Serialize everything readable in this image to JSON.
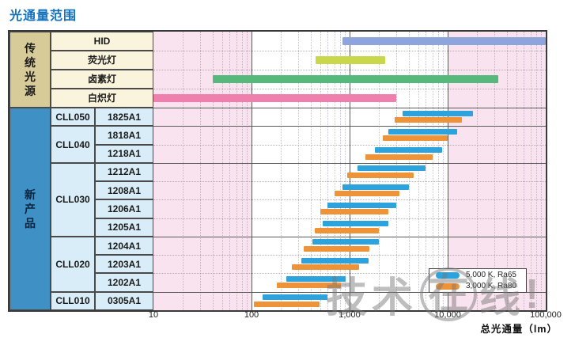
{
  "title": "光通量范围",
  "axis": {
    "title": "总光通量（lm）",
    "tick_labels": [
      "10",
      "100",
      "1,000",
      "10,000",
      "100,000"
    ],
    "tick_values": [
      10,
      100,
      1000,
      10000,
      100000
    ]
  },
  "legend": {
    "items": [
      {
        "label": "5,000 K, Ra65",
        "color": "#2ca3dc"
      },
      {
        "label": "3,000 K, Ra80",
        "color": "#ef9339"
      }
    ]
  },
  "watermark": {
    "prefix": "技术",
    "circled": "在",
    "suffix": "线",
    "bang": "!"
  },
  "colors": {
    "title_blue": "#1472bd",
    "plot_pink_band": "#f9e3ee",
    "plot_white_band": "#ffffff",
    "traditional_header_bg": "#d8cb9a",
    "traditional_label_bg": "#faf4dd",
    "new_product_header_bg": "#3e90c5",
    "product_cell_bg": "#d9edf8",
    "series_5000k": "#2ca3dc",
    "series_3000k": "#ef9339"
  },
  "chart_data": {
    "type": "bar",
    "subtype": "horizontal-range-bars",
    "x_scale": "log",
    "xlim": [
      10,
      100000
    ],
    "xlabel": "总光通量（lm）",
    "x_ticks": [
      10,
      100,
      1000,
      10000,
      100000
    ],
    "white_highlight_band_lm": [
      100,
      10000
    ],
    "grid": "on",
    "legend_position": "bottom-right",
    "traditional": {
      "header": "传统光源",
      "rows": [
        {
          "label": "HID",
          "color": "#8da4dc",
          "range_lm": [
            850,
            100000
          ]
        },
        {
          "label": "荧光灯",
          "color": "#c9d84b",
          "range_lm": [
            450,
            2300
          ]
        },
        {
          "label": "卤素灯",
          "color": "#57b87b",
          "range_lm": [
            40,
            33000
          ]
        },
        {
          "label": "白炽灯",
          "color": "#ef7fac",
          "range_lm": [
            10,
            3000
          ]
        }
      ]
    },
    "products": {
      "header": "新产品",
      "series": [
        {
          "name": "5,000 K, Ra65",
          "key": "ra65",
          "color": "#2ca3dc"
        },
        {
          "name": "3,000 K, Ra80",
          "key": "ra80",
          "color": "#ef9339"
        }
      ],
      "groups": [
        {
          "name": "CLL050",
          "models": [
            {
              "model": "1825A1",
              "ra65": [
                3500,
                18000
              ],
              "ra80": [
                2900,
                14000
              ]
            }
          ]
        },
        {
          "name": "CLL040",
          "models": [
            {
              "model": "1818A1",
              "ra65": [
                2500,
                12500
              ],
              "ra80": [
                2200,
                10000
              ]
            },
            {
              "model": "1218A1",
              "ra65": [
                1800,
                8800
              ],
              "ra80": [
                1450,
                7000
              ]
            }
          ]
        },
        {
          "name": "CLL030",
          "models": [
            {
              "model": "1212A1",
              "ra65": [
                1200,
                6000
              ],
              "ra80": [
                950,
                4500
              ]
            },
            {
              "model": "1208A1",
              "ra65": [
                850,
                4000
              ],
              "ra80": [
                700,
                3200
              ]
            },
            {
              "model": "1206A1",
              "ra65": [
                600,
                3000
              ],
              "ra80": [
                500,
                2500
              ]
            },
            {
              "model": "1205A1",
              "ra65": [
                530,
                2500
              ],
              "ra80": [
                440,
                2000
              ]
            }
          ]
        },
        {
          "name": "CLL020",
          "models": [
            {
              "model": "1204A1",
              "ra65": [
                420,
                2000
              ],
              "ra80": [
                340,
                1600
              ]
            },
            {
              "model": "1203A1",
              "ra65": [
                320,
                1550
              ],
              "ra80": [
                260,
                1250
              ]
            },
            {
              "model": "1202A1",
              "ra65": [
                225,
                920
              ],
              "ra80": [
                180,
                820
              ]
            }
          ]
        },
        {
          "name": "CLL010",
          "models": [
            {
              "model": "0305A1",
              "ra65": [
                130,
                600
              ],
              "ra80": [
                105,
                490
              ]
            }
          ]
        }
      ]
    }
  }
}
